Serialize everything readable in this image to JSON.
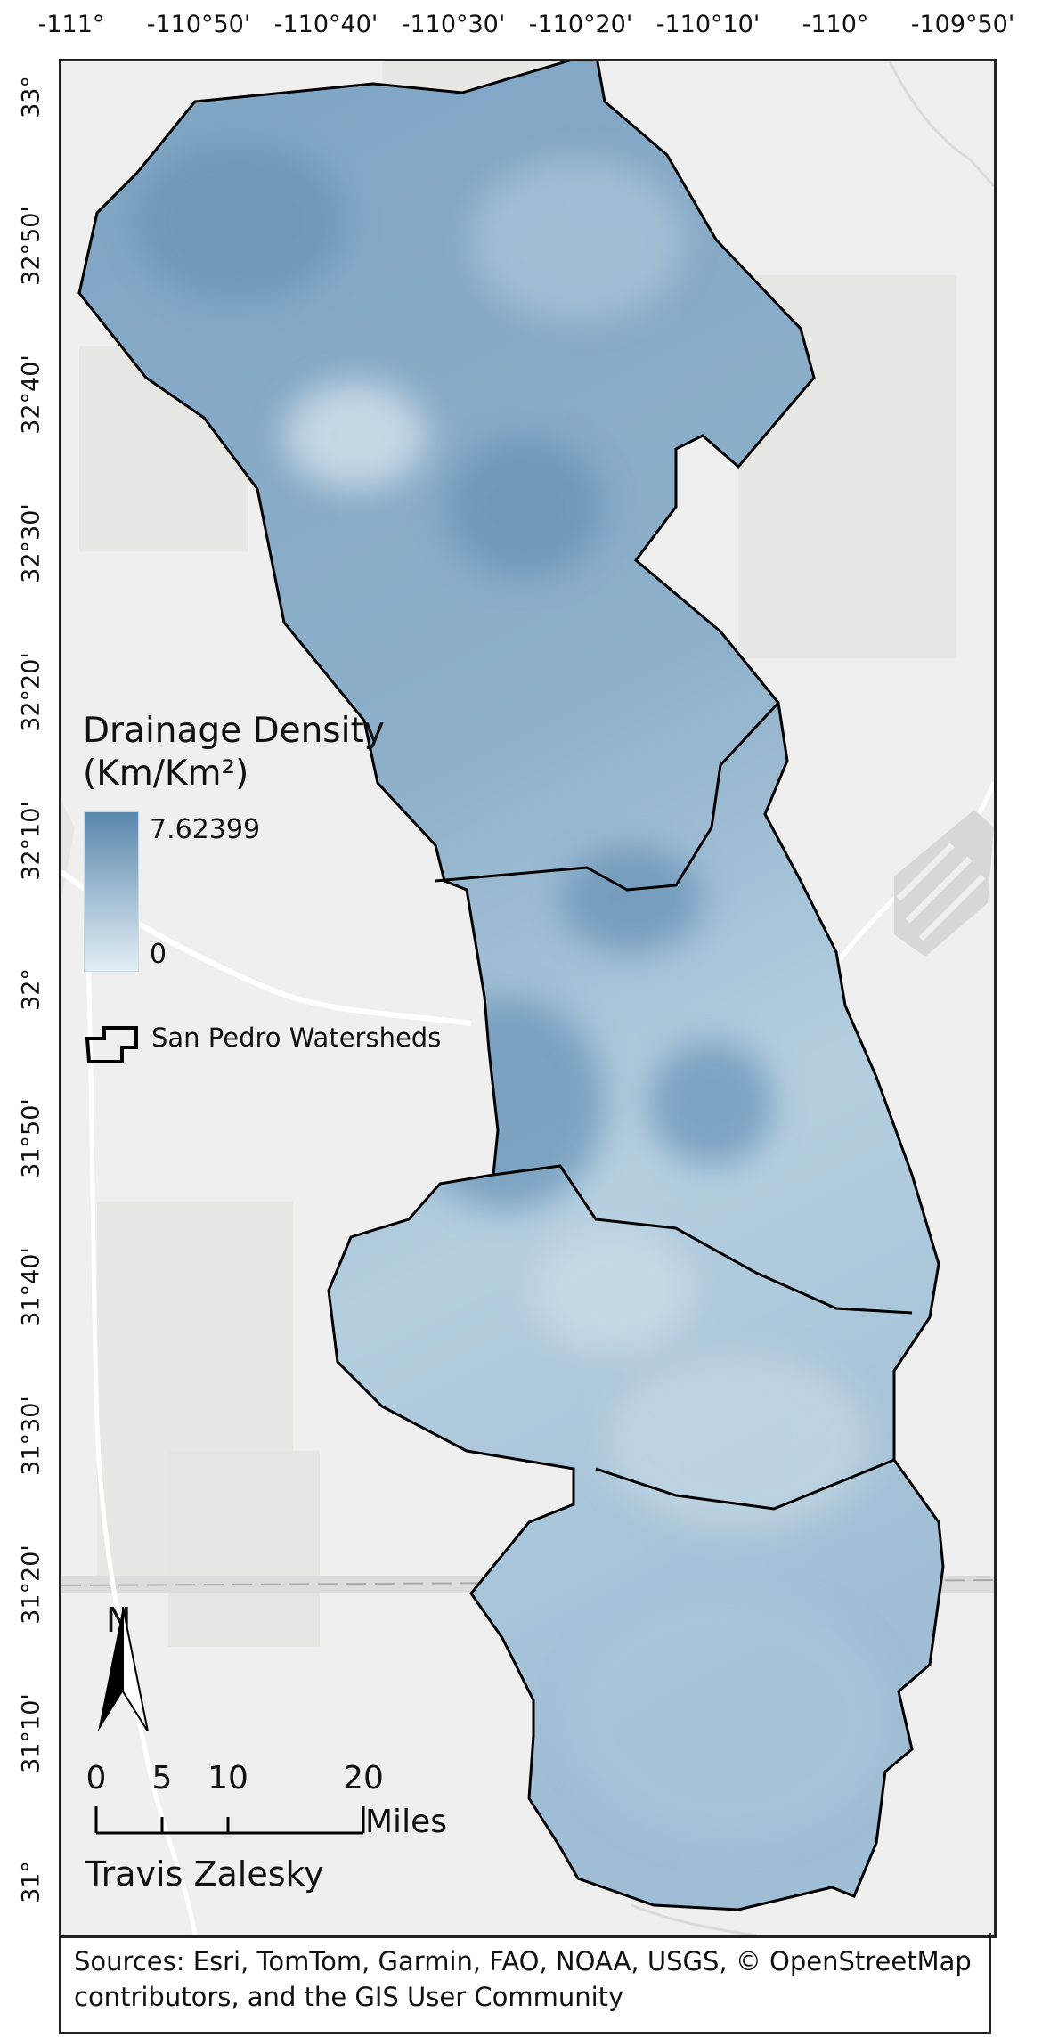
{
  "map": {
    "top_labels": [
      "-111°",
      "-110°50'",
      "-110°40'",
      "-110°30'",
      "-110°20'",
      "-110°10'",
      "-110°",
      "-109°50'"
    ],
    "left_labels": [
      "33°",
      "32°50'",
      "32°40'",
      "32°30'",
      "32°20'",
      "32°10'",
      "32°",
      "31°50'",
      "31°40'",
      "31°30'",
      "31°20'",
      "31°10'",
      "31°"
    ],
    "legend": {
      "title_line1": "Drainage Density",
      "title_line2": "(Km/Km²)",
      "max_label": "7.62399",
      "min_label": "0",
      "outline_label": "San Pedro Watersheds",
      "ramp_colors": [
        "#5a87ad",
        "#e2eef5"
      ]
    },
    "north_letter": "N",
    "scale": {
      "labels": [
        "0",
        "5",
        "10",
        "20"
      ],
      "unit": "Miles"
    },
    "author": "Travis Zalesky",
    "sources": "Sources: Esri, TomTom, Garmin, FAO, NOAA, USGS, © OpenStreetMap contributors, and the GIS User Community"
  }
}
